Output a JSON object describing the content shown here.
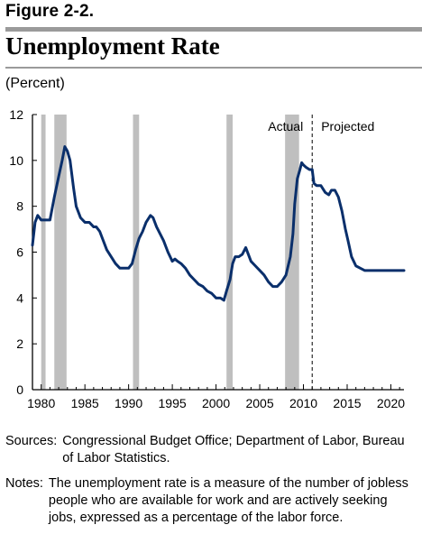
{
  "figure_label": "Figure 2-2.",
  "title": "Unemployment Rate",
  "unit_label": "(Percent)",
  "sources": {
    "label": "Sources:",
    "text": "Congressional Budget Office; Department of Labor, Bureau of Labor Statistics."
  },
  "notes": {
    "label": "Notes:",
    "text": "The unemployment rate is a measure of the number of jobless people who are available for work and are actively seeking jobs, expressed as a percentage of the labor force."
  },
  "colors": {
    "line": "#0a2f6b",
    "recession": "#bfbfbf",
    "axis": "#000000"
  },
  "chart_data": {
    "type": "line",
    "xlim": [
      1979,
      2021.5
    ],
    "ylim": [
      0,
      12
    ],
    "x_ticks": [
      1980,
      1985,
      1990,
      1995,
      2000,
      2005,
      2010,
      2015,
      2020
    ],
    "y_ticks": [
      0,
      2,
      4,
      6,
      8,
      10,
      12
    ],
    "grid": false,
    "annotations": [
      {
        "text": "Actual",
        "x": 2011.0,
        "anchor": "right"
      },
      {
        "text": "Projected",
        "x": 2011.0,
        "anchor": "left"
      }
    ],
    "projection_start": 2011.0,
    "recessions": [
      [
        1980.0,
        1980.5
      ],
      [
        1981.5,
        1982.9
      ],
      [
        1990.5,
        1991.2
      ],
      [
        2001.2,
        2001.9
      ],
      [
        2007.9,
        2009.5
      ]
    ],
    "series": [
      {
        "values": [
          [
            1979.0,
            6.3
          ],
          [
            1979.3,
            7.3
          ],
          [
            1979.6,
            7.6
          ],
          [
            1980.0,
            7.4
          ],
          [
            1980.5,
            7.4
          ],
          [
            1981.0,
            7.4
          ],
          [
            1981.5,
            8.4
          ],
          [
            1982.0,
            9.3
          ],
          [
            1982.4,
            10.0
          ],
          [
            1982.7,
            10.6
          ],
          [
            1983.0,
            10.4
          ],
          [
            1983.3,
            10.0
          ],
          [
            1983.7,
            8.8
          ],
          [
            1984.0,
            8.0
          ],
          [
            1984.5,
            7.5
          ],
          [
            1985.0,
            7.3
          ],
          [
            1985.5,
            7.3
          ],
          [
            1986.0,
            7.1
          ],
          [
            1986.3,
            7.1
          ],
          [
            1986.7,
            6.9
          ],
          [
            1987.0,
            6.6
          ],
          [
            1987.5,
            6.1
          ],
          [
            1988.0,
            5.8
          ],
          [
            1988.5,
            5.5
          ],
          [
            1989.0,
            5.3
          ],
          [
            1989.5,
            5.3
          ],
          [
            1990.0,
            5.3
          ],
          [
            1990.4,
            5.5
          ],
          [
            1990.8,
            6.1
          ],
          [
            1991.2,
            6.6
          ],
          [
            1991.6,
            6.9
          ],
          [
            1992.0,
            7.3
          ],
          [
            1992.5,
            7.6
          ],
          [
            1992.8,
            7.5
          ],
          [
            1993.2,
            7.1
          ],
          [
            1993.6,
            6.8
          ],
          [
            1994.0,
            6.5
          ],
          [
            1994.5,
            6.0
          ],
          [
            1995.0,
            5.6
          ],
          [
            1995.3,
            5.7
          ],
          [
            1995.6,
            5.6
          ],
          [
            1996.0,
            5.5
          ],
          [
            1996.5,
            5.3
          ],
          [
            1997.0,
            5.0
          ],
          [
            1997.5,
            4.8
          ],
          [
            1998.0,
            4.6
          ],
          [
            1998.5,
            4.5
          ],
          [
            1999.0,
            4.3
          ],
          [
            1999.5,
            4.2
          ],
          [
            2000.0,
            4.0
          ],
          [
            2000.5,
            4.0
          ],
          [
            2000.9,
            3.9
          ],
          [
            2001.2,
            4.3
          ],
          [
            2001.6,
            4.8
          ],
          [
            2001.9,
            5.5
          ],
          [
            2002.2,
            5.8
          ],
          [
            2002.6,
            5.8
          ],
          [
            2003.0,
            5.9
          ],
          [
            2003.4,
            6.2
          ],
          [
            2003.7,
            5.9
          ],
          [
            2004.0,
            5.6
          ],
          [
            2004.5,
            5.4
          ],
          [
            2005.0,
            5.2
          ],
          [
            2005.5,
            5.0
          ],
          [
            2006.0,
            4.7
          ],
          [
            2006.5,
            4.5
          ],
          [
            2006.8,
            4.5
          ],
          [
            2007.0,
            4.5
          ],
          [
            2007.5,
            4.7
          ],
          [
            2008.0,
            5.0
          ],
          [
            2008.5,
            5.8
          ],
          [
            2008.8,
            6.8
          ],
          [
            2009.0,
            8.1
          ],
          [
            2009.3,
            9.2
          ],
          [
            2009.6,
            9.6
          ],
          [
            2009.8,
            9.9
          ],
          [
            2010.0,
            9.8
          ],
          [
            2010.3,
            9.7
          ],
          [
            2010.7,
            9.6
          ],
          [
            2011.0,
            9.6
          ],
          [
            2011.2,
            9.0
          ],
          [
            2011.5,
            8.9
          ],
          [
            2012.0,
            8.9
          ],
          [
            2012.5,
            8.6
          ],
          [
            2012.9,
            8.5
          ],
          [
            2013.2,
            8.7
          ],
          [
            2013.6,
            8.7
          ],
          [
            2014.0,
            8.4
          ],
          [
            2014.4,
            7.8
          ],
          [
            2014.8,
            7.0
          ],
          [
            2015.1,
            6.5
          ],
          [
            2015.5,
            5.8
          ],
          [
            2016.0,
            5.4
          ],
          [
            2016.5,
            5.3
          ],
          [
            2017.0,
            5.2
          ],
          [
            2018.0,
            5.2
          ],
          [
            2019.0,
            5.2
          ],
          [
            2020.0,
            5.2
          ],
          [
            2021.0,
            5.2
          ],
          [
            2021.5,
            5.2
          ]
        ]
      }
    ]
  }
}
